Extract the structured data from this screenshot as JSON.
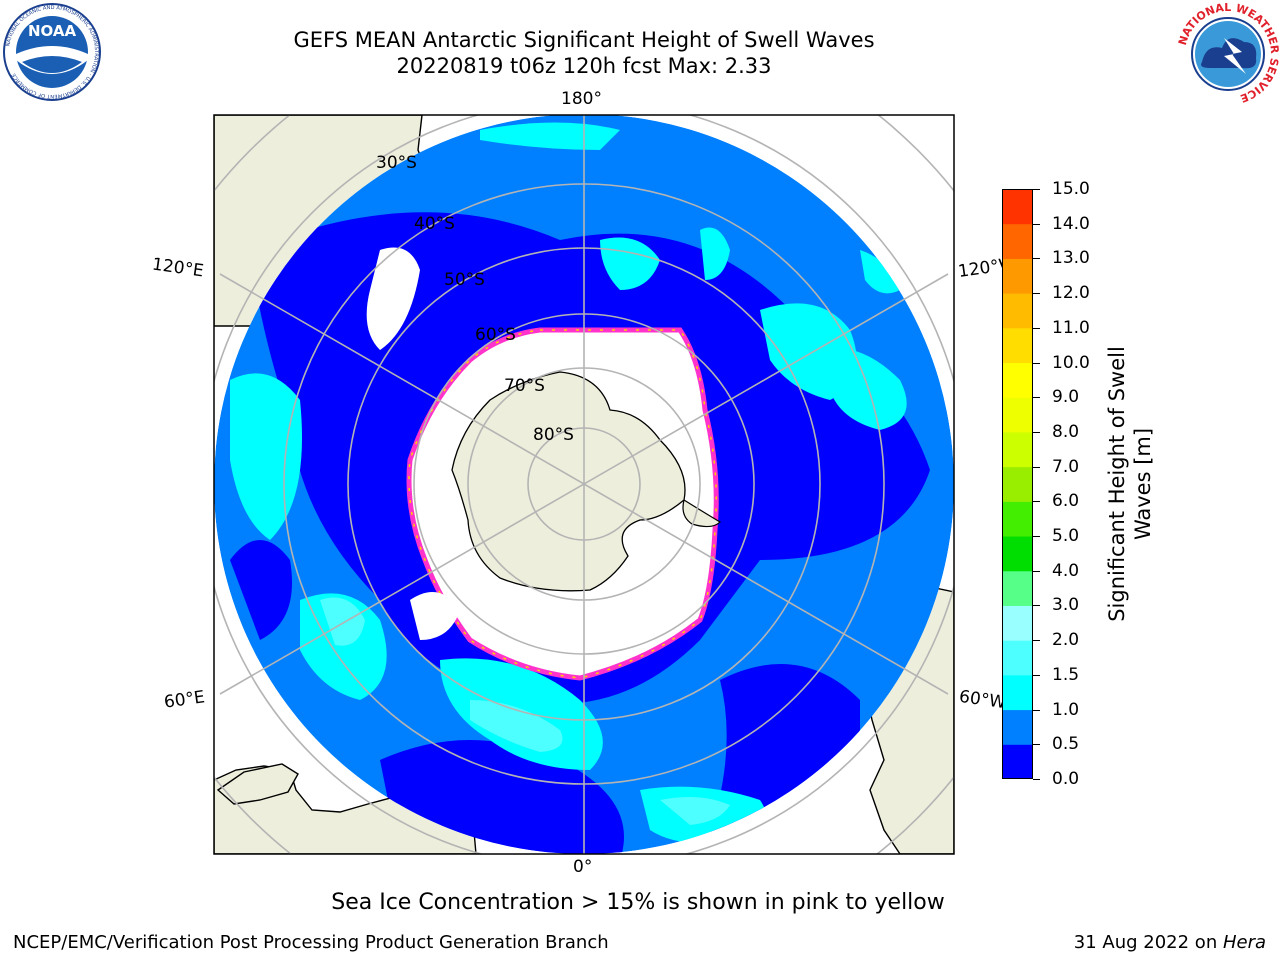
{
  "header": {
    "title_line1": "GEFS MEAN Antarctic Significant Height of Swell Waves",
    "title_line2": "20220819 t06z 120h fcst   Max: 2.33"
  },
  "logos": {
    "noaa_text": "NOAA",
    "noaa_ring_text": "NATIONAL OCEANIC AND ATMOSPHERIC ADMINISTRATION · U.S. DEPARTMENT OF COMMERCE",
    "nws_ring_text": "NATIONAL WEATHER SERVICE"
  },
  "map": {
    "projection": "south-polar-stereographic",
    "longitude_labels": {
      "top": "180°",
      "bottom": "0°",
      "upper_left": "120°E",
      "upper_right": "120°W",
      "lower_left": "60°E",
      "lower_right": "60°W"
    },
    "latitude_labels": [
      "30°S",
      "40°S",
      "50°S",
      "60°S",
      "70°S",
      "80°S"
    ],
    "colors": {
      "land": "#eeeedc",
      "band_0_0_5": "#0000ff",
      "band_0_5_1_0": "#0080ff",
      "band_1_0_1_5": "#00ffff",
      "band_1_5_2_0": "#4dffff",
      "band_2_0_3_0": "#99ffff",
      "sea_ice": "#ffffff",
      "ice_edge": "#ff33cc",
      "ice_edge_high": "#ffd000",
      "graticule": "#b4b4b4"
    }
  },
  "colorbar": {
    "label": "Significant Height of Swell Waves [m]",
    "label_line1": "Significant Height of Swell",
    "label_line2": "Waves [m]",
    "ticks": [
      "15.0",
      "14.0",
      "13.0",
      "12.0",
      "11.0",
      "10.0",
      "9.0",
      "8.0",
      "7.0",
      "6.0",
      "5.0",
      "4.0",
      "3.0",
      "2.0",
      "1.5",
      "1.0",
      "0.5",
      "0.0"
    ],
    "colors": [
      "#0000ff",
      "#0080ff",
      "#00ffff",
      "#4dffff",
      "#99ffff",
      "#55ff88",
      "#00dd00",
      "#44ee00",
      "#99ee00",
      "#ccff00",
      "#eeff00",
      "#ffff00",
      "#ffdd00",
      "#ffbb00",
      "#ff9900",
      "#ff6600",
      "#ff3300",
      "#ff0000"
    ]
  },
  "footer": {
    "ice_note": "Sea Ice Concentration > 15% is shown in pink to yellow",
    "left": "NCEP/EMC/Verification Post Processing Product Generation Branch",
    "right_date": "31 Aug 2022 on ",
    "right_host": "Hera"
  }
}
